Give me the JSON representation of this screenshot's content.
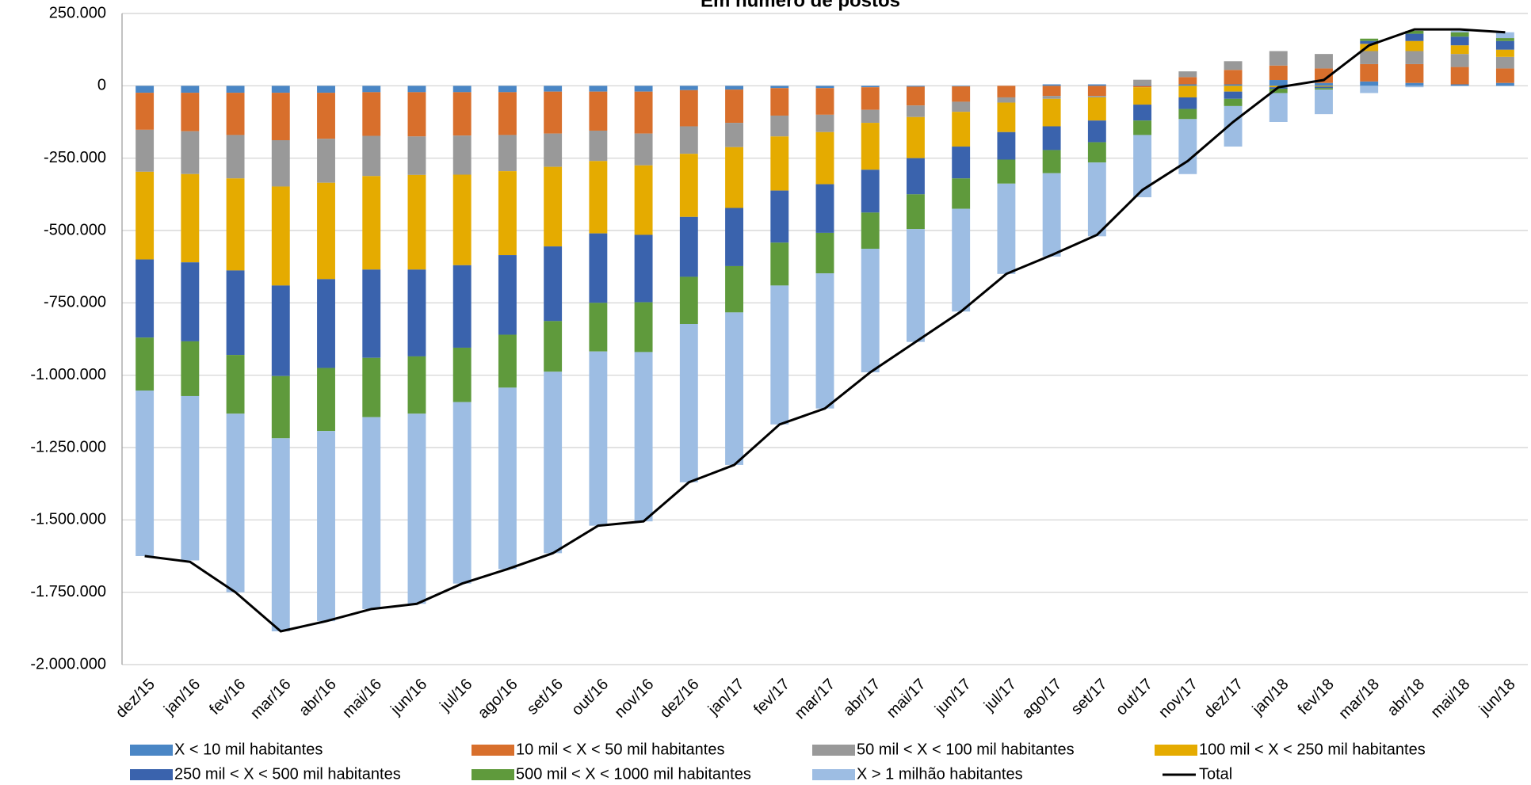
{
  "chart_data": {
    "type": "bar",
    "stacked": true,
    "title": "Em número de postos",
    "categories": [
      "dez/15",
      "jan/16",
      "fev/16",
      "mar/16",
      "abr/16",
      "mai/16",
      "jun/16",
      "jul/16",
      "ago/16",
      "set/16",
      "out/16",
      "nov/16",
      "dez/16",
      "jan/17",
      "fev/17",
      "mar/17",
      "abr/17",
      "mai/17",
      "jun/17",
      "jul/17",
      "ago/17",
      "set/17",
      "out/17",
      "nov/17",
      "dez/17",
      "jan/18",
      "fev/18",
      "mar/18",
      "abr/18",
      "mai/18",
      "jun/18"
    ],
    "ylim": [
      -2000000,
      250000
    ],
    "yticks": [
      {
        "value": 250000,
        "label": "250.000"
      },
      0,
      {
        "value": -250000,
        "label": "-250.000"
      },
      {
        "value": -500000,
        "label": "-500.000"
      },
      {
        "value": -750000,
        "label": "-750.000"
      },
      {
        "value": -1000000,
        "label": "-1.000.000"
      },
      {
        "value": -1250000,
        "label": "-1.250.000"
      },
      {
        "value": -1500000,
        "label": "-1.500.000"
      },
      {
        "value": -1750000,
        "label": "-1.750.000"
      },
      {
        "value": -2000000,
        "label": "-2.000.000"
      }
    ],
    "grid": true,
    "series": [
      {
        "name": "X < 10 mil habitantes",
        "color": "#4a86c5",
        "values": [
          -24000,
          -24000,
          -24000,
          -24000,
          -24000,
          -22000,
          -22000,
          -22000,
          -22000,
          -20000,
          -20000,
          -20000,
          -15000,
          -13000,
          -8000,
          -8000,
          -5000,
          -3000,
          -2000,
          0,
          5000,
          5000,
          3000,
          5000,
          5000,
          20000,
          10000,
          15000,
          10000,
          5000,
          10000
        ]
      },
      {
        "name": "10 mil < X < 50 mil habitantes",
        "color": "#d86f2c",
        "values": [
          -128000,
          -133000,
          -146000,
          -164000,
          -159000,
          -151000,
          -153000,
          -150000,
          -148000,
          -145000,
          -135000,
          -145000,
          -125000,
          -115000,
          -95000,
          -92000,
          -78000,
          -65000,
          -53000,
          -40000,
          -35000,
          -35000,
          -5000,
          25000,
          50000,
          50000,
          50000,
          60000,
          65000,
          60000,
          50000
        ]
      },
      {
        "name": "50 mil < X < 100 mil habitantes",
        "color": "#999999",
        "values": [
          -145000,
          -148000,
          -150000,
          -160000,
          -152000,
          -139000,
          -133000,
          -135000,
          -125000,
          -115000,
          -105000,
          -110000,
          -95000,
          -84000,
          -72000,
          -60000,
          -45000,
          -40000,
          -35000,
          -18000,
          -10000,
          -5000,
          18000,
          20000,
          30000,
          50000,
          50000,
          45000,
          45000,
          45000,
          40000
        ]
      },
      {
        "name": "100 mil < X < 250 mil habitantes",
        "color": "#e5ab00",
        "values": [
          -303000,
          -305000,
          -318000,
          -342000,
          -333000,
          -323000,
          -327000,
          -313000,
          -290000,
          -275000,
          -250000,
          -240000,
          -218000,
          -210000,
          -187000,
          -180000,
          -162000,
          -142000,
          -120000,
          -102000,
          -95000,
          -80000,
          -60000,
          -40000,
          -20000,
          -5000,
          -3000,
          25000,
          35000,
          30000,
          25000
        ]
      },
      {
        "name": "250 mil < X < 500 mil habitantes",
        "color": "#3a63ad",
        "values": [
          -270000,
          -273000,
          -292000,
          -313000,
          -307000,
          -305000,
          -300000,
          -285000,
          -275000,
          -258000,
          -240000,
          -233000,
          -207000,
          -201000,
          -180000,
          -168000,
          -148000,
          -125000,
          -110000,
          -95000,
          -82000,
          -75000,
          -55000,
          -40000,
          -25000,
          -5000,
          -5000,
          10000,
          25000,
          30000,
          30000
        ]
      },
      {
        "name": "500 mil < X < 1000 mil habitantes",
        "color": "#5f9a3c",
        "values": [
          -183000,
          -189000,
          -203000,
          -215000,
          -218000,
          -205000,
          -198000,
          -188000,
          -183000,
          -175000,
          -168000,
          -172000,
          -163000,
          -160000,
          -148000,
          -140000,
          -125000,
          -120000,
          -105000,
          -83000,
          -80000,
          -70000,
          -50000,
          -35000,
          -25000,
          -15000,
          -5000,
          8000,
          10000,
          15000,
          10000
        ]
      },
      {
        "name": "X > 1 milhão habitantes",
        "color": "#9dbde3",
        "values": [
          -572000,
          -568000,
          -617000,
          -667000,
          -657000,
          -663000,
          -657000,
          -627000,
          -627000,
          -627000,
          -602000,
          -585000,
          -547000,
          -527000,
          -480000,
          -467000,
          -427000,
          -390000,
          -355000,
          -312000,
          -288000,
          -255000,
          -215000,
          -190000,
          -140000,
          -100000,
          -85000,
          -25000,
          -5000,
          5000,
          20000
        ]
      },
      {
        "name": "Total",
        "color": "#000000",
        "type": "line",
        "values": [
          -1625000,
          -1645000,
          -1750000,
          -1885000,
          -1850000,
          -1808000,
          -1790000,
          -1720000,
          -1670000,
          -1615000,
          -1520000,
          -1505000,
          -1370000,
          -1310000,
          -1170000,
          -1115000,
          -990000,
          -885000,
          -780000,
          -650000,
          -585000,
          -515000,
          -360000,
          -260000,
          -125000,
          -5000,
          20000,
          140000,
          195000,
          195000,
          185000
        ]
      }
    ]
  }
}
